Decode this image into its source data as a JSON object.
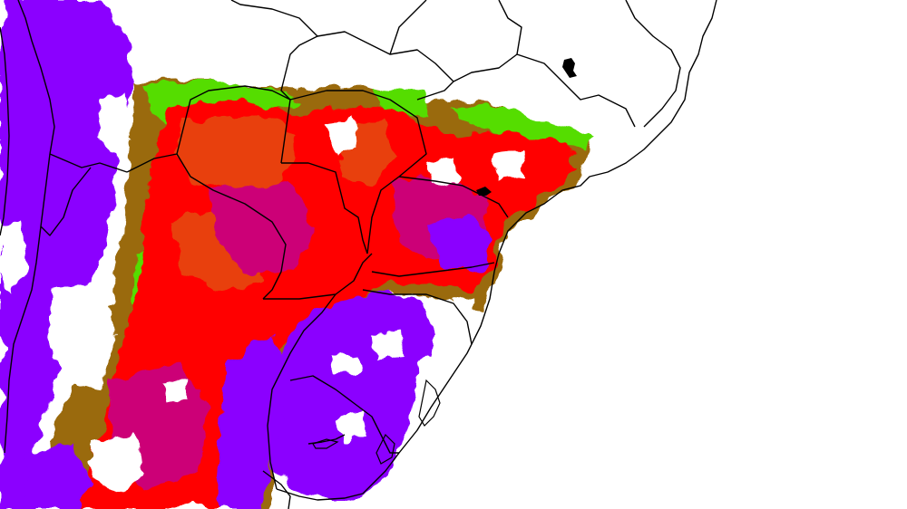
{
  "map": {
    "region": "southern-south-america",
    "background_color": "#ffffff",
    "border_color": "#000000",
    "palette": {
      "purple": "#8b00ff",
      "magenta": "#cc0077",
      "red": "#ff0000",
      "orange_red": "#e8400d",
      "olive": "#9a6a10",
      "green": "#55dd00",
      "white": "#ffffff"
    }
  }
}
